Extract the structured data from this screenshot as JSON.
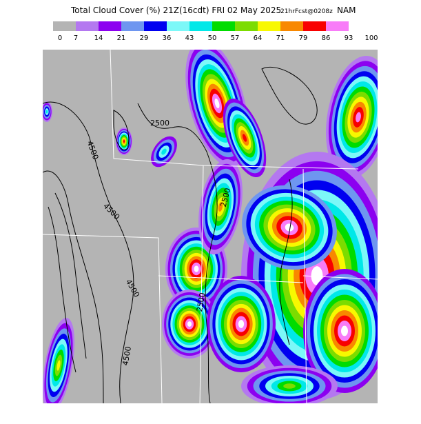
{
  "header": {
    "title": "Total Cloud Cover (%) 21Z(16cdt) FRI 02 May 2025",
    "forecast": "21hrFcst@0208z",
    "model": "NAM"
  },
  "legend": {
    "colors": [
      "#b4b4b4",
      "#b478f0",
      "#8c00f0",
      "#6e96f0",
      "#0000f0",
      "#7cf8f8",
      "#00e8e8",
      "#00dc00",
      "#7cdc00",
      "#f8f800",
      "#f88800",
      "#f80000",
      "#f87cf8",
      "#ffffff"
    ],
    "labels": [
      0,
      7,
      14,
      21,
      29,
      36,
      43,
      50,
      57,
      64,
      71,
      79,
      86,
      93,
      100
    ]
  },
  "contour_labels": [
    "2500",
    "4500",
    "4500",
    "4500",
    "2500",
    "2500",
    "4500"
  ]
}
